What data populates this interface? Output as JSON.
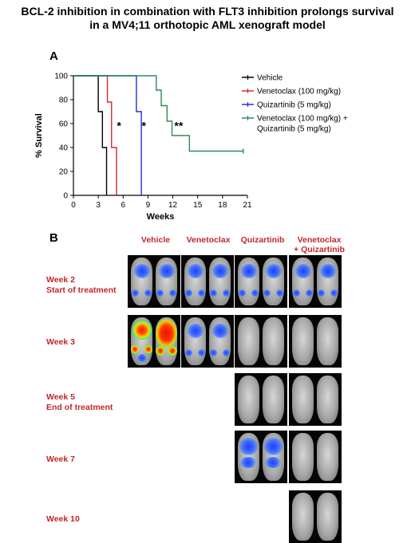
{
  "title_line1": "BCL-2 inhibition in combination with FLT3 inhibition prolongs survival",
  "title_line2": "in a MV4;11 orthotopic AML xenograft model",
  "panel_a": "A",
  "panel_b": "B",
  "chart_data": {
    "type": "line",
    "step": true,
    "xlabel": "Weeks",
    "ylabel": "% Survival",
    "xlim": [
      0,
      21
    ],
    "ylim": [
      0,
      100
    ],
    "xticks": [
      0,
      3,
      6,
      9,
      12,
      15,
      18,
      21
    ],
    "yticks": [
      0,
      20,
      40,
      60,
      80,
      100
    ],
    "grid": false,
    "legend": "right",
    "series": [
      {
        "name": "Vehicle",
        "color": "#000000",
        "x": [
          0,
          3,
          3.5,
          4
        ],
        "y": [
          100,
          70,
          40,
          0
        ]
      },
      {
        "name": "Venetoclax (100 mg/kg)",
        "color": "#d42a2a",
        "x": [
          0,
          4.1,
          4.6,
          5.2
        ],
        "y": [
          100,
          78,
          40,
          0
        ]
      },
      {
        "name": "Quizartinib (5 mg/kg)",
        "color": "#2a2ad4",
        "x": [
          0,
          7.6,
          8.2
        ],
        "y": [
          100,
          70,
          0
        ]
      },
      {
        "name": "Venetoclax (100 mg/kg) + Quizartinib (5 mg/kg)",
        "color": "#2e8b57",
        "x": [
          0,
          10,
          10.6,
          11.3,
          11.9,
          14,
          20.5
        ],
        "y": [
          100,
          88,
          75,
          62,
          50,
          37,
          37
        ]
      }
    ],
    "annotations": [
      {
        "text": "*",
        "x": 5.5,
        "y": 55
      },
      {
        "text": "*",
        "x": 8.5,
        "y": 55
      },
      {
        "text": "**",
        "x": 12.7,
        "y": 55
      }
    ]
  },
  "imaging": {
    "columns": [
      "Vehicle",
      "Venetoclax",
      "Quizartinib",
      "Venetoclax",
      "+ Quizartinib"
    ],
    "rows": [
      {
        "label": [
          "Week 2",
          "Start of treatment"
        ],
        "cells": [
          "blue",
          "blue",
          "blue",
          "blue"
        ]
      },
      {
        "label": [
          "Week 3"
        ],
        "cells": [
          "hot",
          "blue",
          "clear",
          "clear"
        ]
      },
      {
        "label": [
          "Week 5",
          "End of treatment"
        ],
        "cells": [
          null,
          null,
          "clear",
          "clear"
        ]
      },
      {
        "label": [
          "Week 7"
        ],
        "cells": [
          null,
          null,
          "blue",
          "clear"
        ]
      },
      {
        "label": [
          "Week 10"
        ],
        "cells": [
          null,
          null,
          null,
          "clear"
        ]
      }
    ]
  }
}
